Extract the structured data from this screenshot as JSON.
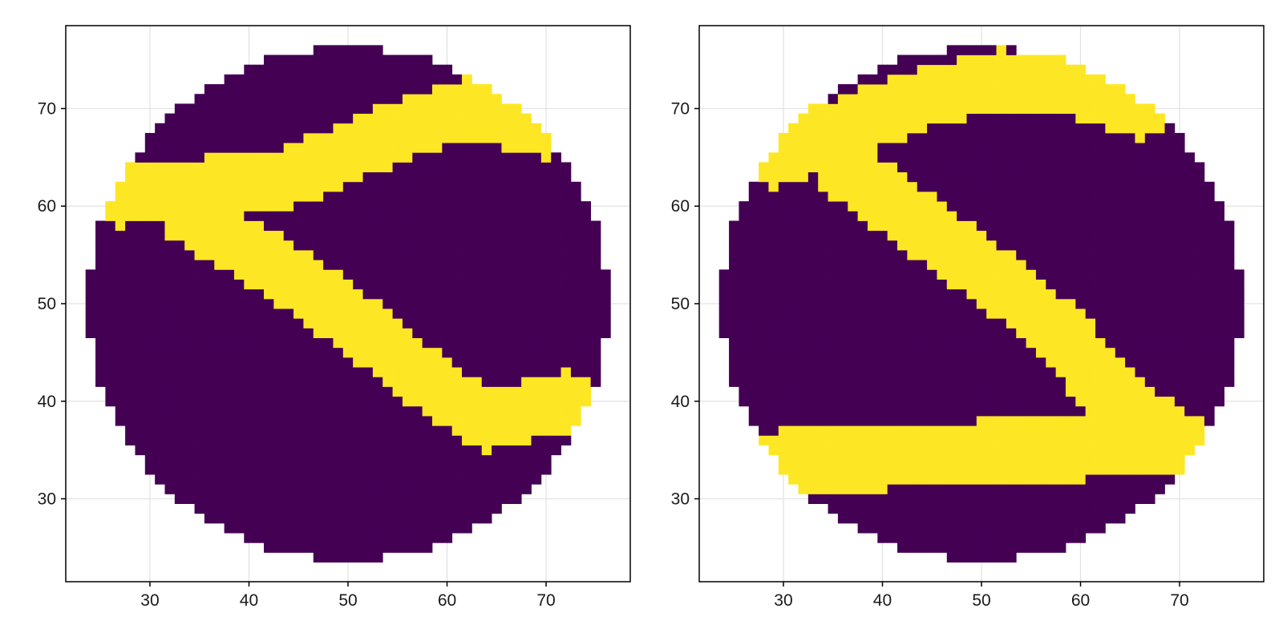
{
  "chart_data": [
    {
      "type": "heatmap",
      "title": "",
      "xlabel": "",
      "ylabel": "",
      "xlim": [
        21.5,
        78.5
      ],
      "ylim": [
        21.5,
        78.5
      ],
      "x_ticks": [
        "30",
        "40",
        "50",
        "60",
        "70"
      ],
      "y_ticks": [
        "30",
        "40",
        "50",
        "60",
        "70"
      ],
      "grid": true,
      "legend": "none",
      "colors": {
        "low": "#440154",
        "high": "#fde725"
      },
      "description_of_values": "categorical grid cells on a disc of radius ~26 centered at (50,50); 0 = dark purple, 1 = yellow",
      "regions": {
        "disc_center": [
          50,
          50
        ],
        "disc_radius": 26,
        "yellow_band_main_path": [
          [
            27,
            61
          ],
          [
            36,
            62
          ],
          [
            44,
            63
          ],
          [
            56,
            68
          ],
          [
            62,
            70
          ],
          [
            70,
            68
          ]
        ],
        "yellow_band_lower_path": [
          [
            34,
            59
          ],
          [
            44,
            53
          ],
          [
            52,
            47
          ],
          [
            58,
            42
          ],
          [
            64,
            38
          ],
          [
            72,
            40
          ]
        ],
        "yellow_band_width": 5.5
      }
    },
    {
      "type": "heatmap",
      "title": "",
      "xlabel": "",
      "ylabel": "",
      "xlim": [
        21.5,
        78.5
      ],
      "ylim": [
        21.5,
        78.5
      ],
      "x_ticks": [
        "30",
        "40",
        "50",
        "60",
        "70"
      ],
      "y_ticks": [
        "30",
        "40",
        "50",
        "60",
        "70"
      ],
      "grid": true,
      "legend": "none",
      "colors": {
        "low": "#440154",
        "high": "#fde725"
      },
      "description_of_values": "categorical grid cells on a disc of radius ~26 centered at (50,50); 0 = dark purple, 1 = yellow",
      "regions": {
        "disc_center": [
          50,
          50
        ],
        "disc_radius": 26,
        "yellow_band_main_path": [
          [
            29,
            65
          ],
          [
            36,
            68
          ],
          [
            44,
            71
          ],
          [
            52,
            73
          ],
          [
            60,
            72
          ],
          [
            66,
            70
          ]
        ],
        "yellow_band_mid_path": [
          [
            36,
            64
          ],
          [
            44,
            58
          ],
          [
            52,
            52
          ],
          [
            58,
            47
          ],
          [
            62,
            42
          ],
          [
            68,
            37
          ]
        ],
        "yellow_band_lower_path": [
          [
            30,
            34
          ],
          [
            40,
            34
          ],
          [
            50,
            35
          ],
          [
            60,
            35
          ],
          [
            70,
            36
          ]
        ],
        "yellow_band_width": 5.5
      }
    }
  ]
}
